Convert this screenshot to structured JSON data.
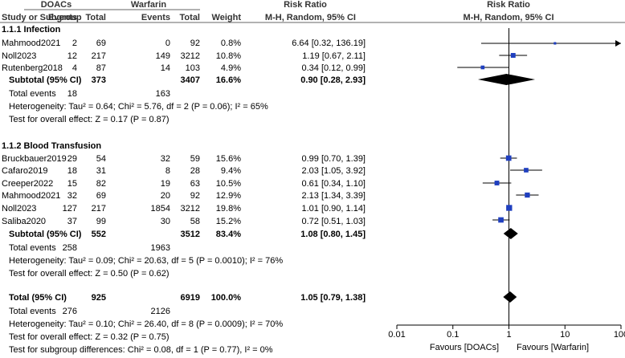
{
  "headers": {
    "group_dabigatran": "DOACs",
    "group_warfarin": "Warfarin",
    "group_rr": "Risk Ratio",
    "group_rr_plot": "Risk Ratio",
    "study": "Study or Subgroup",
    "events_1": "Events",
    "total_1": "Total",
    "events_2": "Events",
    "total_2": "Total",
    "weight": "Weight",
    "method": "M-H, Random, 95% CI",
    "method_plot": "M-H, Random, 95% CI"
  },
  "subgroups": [
    {
      "title": "1.1.1 Infection",
      "studies": [
        {
          "name": "Mahmood2021",
          "e1": "2",
          "t1": "69",
          "e2": "0",
          "t2": "92",
          "weight": "0.8%",
          "ci_text": "6.64 [0.32, 136.19]",
          "rr": 6.64,
          "lo": 0.32,
          "hi": 136.19,
          "arrow_right": true
        },
        {
          "name": "Noll2023",
          "e1": "12",
          "t1": "217",
          "e2": "149",
          "t2": "3212",
          "weight": "10.8%",
          "ci_text": "1.19 [0.67, 2.11]",
          "rr": 1.19,
          "lo": 0.67,
          "hi": 2.11
        },
        {
          "name": "Rutenberg2018",
          "e1": "4",
          "t1": "87",
          "e2": "14",
          "t2": "103",
          "weight": "4.9%",
          "ci_text": "0.34 [0.12, 0.99]",
          "rr": 0.34,
          "lo": 0.12,
          "hi": 0.99
        }
      ],
      "subtotal": {
        "label": "Subtotal (95% CI)",
        "t1": "373",
        "t2": "3407",
        "weight": "16.6%",
        "ci_text": "0.90 [0.28, 2.93]",
        "rr": 0.9,
        "lo": 0.28,
        "hi": 2.93
      },
      "total_events": {
        "label": "Total events",
        "e1": "18",
        "e2": "163"
      },
      "heterogeneity": "Heterogeneity: Tau² = 0.64; Chi² = 5.76, df = 2 (P = 0.06); I² = 65%",
      "overall_effect": "Test for overall effect: Z = 0.17 (P = 0.87)"
    },
    {
      "title": "1.1.2 Blood Transfusion",
      "studies": [
        {
          "name": "Bruckbauer2019",
          "e1": "29",
          "t1": "54",
          "e2": "32",
          "t2": "59",
          "weight": "15.6%",
          "ci_text": "0.99 [0.70, 1.39]",
          "rr": 0.99,
          "lo": 0.7,
          "hi": 1.39
        },
        {
          "name": "Cafaro2019",
          "e1": "18",
          "t1": "31",
          "e2": "8",
          "t2": "28",
          "weight": "9.4%",
          "ci_text": "2.03 [1.05, 3.92]",
          "rr": 2.03,
          "lo": 1.05,
          "hi": 3.92
        },
        {
          "name": "Creeper2022",
          "e1": "15",
          "t1": "82",
          "e2": "19",
          "t2": "63",
          "weight": "10.5%",
          "ci_text": "0.61 [0.34, 1.10]",
          "rr": 0.61,
          "lo": 0.34,
          "hi": 1.1
        },
        {
          "name": "Mahmood2021",
          "e1": "32",
          "t1": "69",
          "e2": "20",
          "t2": "92",
          "weight": "12.9%",
          "ci_text": "2.13 [1.34, 3.39]",
          "rr": 2.13,
          "lo": 1.34,
          "hi": 3.39
        },
        {
          "name": "Noll2023",
          "e1": "127",
          "t1": "217",
          "e2": "1854",
          "t2": "3212",
          "weight": "19.8%",
          "ci_text": "1.01 [0.90, 1.14]",
          "rr": 1.01,
          "lo": 0.9,
          "hi": 1.14
        },
        {
          "name": "Saliba2020",
          "e1": "37",
          "t1": "99",
          "e2": "30",
          "t2": "58",
          "weight": "15.2%",
          "ci_text": "0.72 [0.51, 1.03]",
          "rr": 0.72,
          "lo": 0.51,
          "hi": 1.03
        }
      ],
      "subtotal": {
        "label": "Subtotal (95% CI)",
        "t1": "552",
        "t2": "3512",
        "weight": "83.4%",
        "ci_text": "1.08 [0.80, 1.45]",
        "rr": 1.08,
        "lo": 0.8,
        "hi": 1.45
      },
      "total_events": {
        "label": "Total events",
        "e1": "258",
        "e2": "1963"
      },
      "heterogeneity": "Heterogeneity: Tau² = 0.09; Chi² = 20.63, df = 5 (P = 0.0010); I² = 76%",
      "overall_effect": "Test for overall effect: Z = 0.50 (P = 0.62)"
    }
  ],
  "overall": {
    "label": "Total (95% CI)",
    "t1": "925",
    "t2": "6919",
    "weight": "100.0%",
    "ci_text": "1.05 [0.79, 1.38]",
    "rr": 1.05,
    "lo": 0.79,
    "hi": 1.38,
    "total_events": {
      "label": "Total events",
      "e1": "276",
      "e2": "2126"
    },
    "heterogeneity": "Heterogeneity: Tau² = 0.10; Chi² = 26.40, df = 8 (P = 0.0009); I² = 70%",
    "overall_effect": "Test for overall effect: Z = 0.32 (P = 0.75)",
    "subgroup_diff": "Test for subgroup differences: Chi² = 0.08, df = 1 (P = 0.77), I² = 0%"
  },
  "axis": {
    "ticks": [
      0.01,
      0.1,
      1,
      10,
      100
    ],
    "tick_labels": [
      "0.01",
      "0.1",
      "1",
      "10",
      "100"
    ],
    "favours_left": "Favours [DOACs]",
    "favours_right": "Favours [Warfarin]"
  },
  "colors": {
    "study_marker": "#1f3fbf",
    "lines": "#000000",
    "header_rule": "#666666"
  },
  "chart_data": {
    "type": "forest",
    "scale": "log",
    "xlim": [
      0.01,
      100
    ],
    "null_line": 1,
    "series": [
      {
        "name": "Mahmood2021 (Infection)",
        "rr": 6.64,
        "ci": [
          0.32,
          136.19
        ],
        "weight": 0.8
      },
      {
        "name": "Noll2023 (Infection)",
        "rr": 1.19,
        "ci": [
          0.67,
          2.11
        ],
        "weight": 10.8
      },
      {
        "name": "Rutenberg2018",
        "rr": 0.34,
        "ci": [
          0.12,
          0.99
        ],
        "weight": 4.9
      },
      {
        "name": "Subtotal Infection",
        "rr": 0.9,
        "ci": [
          0.28,
          2.93
        ],
        "weight": 16.6
      },
      {
        "name": "Bruckbauer2019",
        "rr": 0.99,
        "ci": [
          0.7,
          1.39
        ],
        "weight": 15.6
      },
      {
        "name": "Cafaro2019",
        "rr": 2.03,
        "ci": [
          1.05,
          3.92
        ],
        "weight": 9.4
      },
      {
        "name": "Creeper2022",
        "rr": 0.61,
        "ci": [
          0.34,
          1.1
        ],
        "weight": 10.5
      },
      {
        "name": "Mahmood2021 (Transfusion)",
        "rr": 2.13,
        "ci": [
          1.34,
          3.39
        ],
        "weight": 12.9
      },
      {
        "name": "Noll2023 (Transfusion)",
        "rr": 1.01,
        "ci": [
          0.9,
          1.14
        ],
        "weight": 19.8
      },
      {
        "name": "Saliba2020",
        "rr": 0.72,
        "ci": [
          0.51,
          1.03
        ],
        "weight": 15.2
      },
      {
        "name": "Subtotal Blood Transfusion",
        "rr": 1.08,
        "ci": [
          0.8,
          1.45
        ],
        "weight": 83.4
      },
      {
        "name": "Total",
        "rr": 1.05,
        "ci": [
          0.79,
          1.38
        ],
        "weight": 100.0
      }
    ]
  }
}
